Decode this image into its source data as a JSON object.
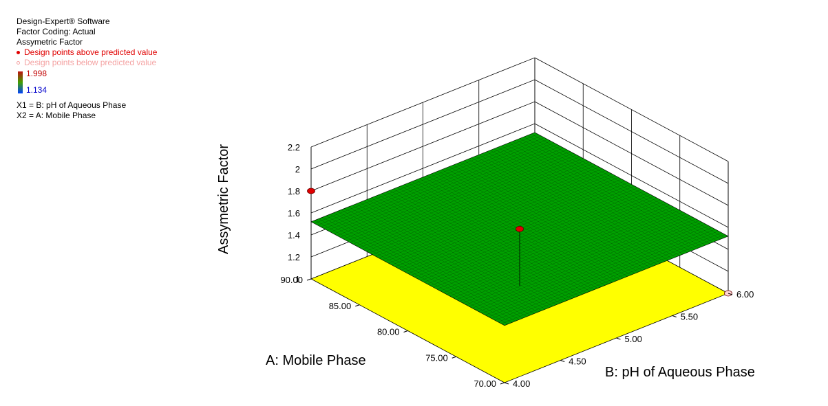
{
  "legend": {
    "software": "Design-Expert® Software",
    "coding": "Factor Coding: Actual",
    "response": "Assymetric Factor",
    "points_above": "Design points above predicted value",
    "points_below": "Design points below predicted value",
    "scale_max": "1.998",
    "scale_min": "1.134",
    "x1": "X1 = B: pH of Aqueous Phase",
    "x2": "X2 = A: Mobile Phase",
    "colors": {
      "above": "#e00000",
      "below": "#f4a3a3",
      "scale_max_text": "#c00000",
      "scale_min_text": "#0000cc"
    }
  },
  "chart_data": {
    "type": "surface",
    "title": "",
    "zlabel": "Assymetric Factor",
    "xlabel": "B: pH of Aqueous Phase",
    "ylabel": "A: Mobile Phase",
    "x_ticks": [
      "4.00",
      "4.50",
      "5.00",
      "5.50",
      "6.00"
    ],
    "y_ticks": [
      "70.00",
      "75.00",
      "80.00",
      "85.00",
      "90.00"
    ],
    "z_ticks": [
      "1",
      "1.2",
      "1.4",
      "1.6",
      "1.8",
      "2",
      "2.2"
    ],
    "xlim": [
      4.0,
      6.0
    ],
    "ylim": [
      70.0,
      90.0
    ],
    "zlim": [
      1.0,
      2.2
    ],
    "surface": {
      "corners": [
        {
          "b": 4.0,
          "a": 70.0,
          "z": 1.52
        },
        {
          "b": 6.0,
          "a": 70.0,
          "z": 1.52
        },
        {
          "b": 4.0,
          "a": 90.0,
          "z": 1.52
        },
        {
          "b": 6.0,
          "a": 90.0,
          "z": 1.52
        }
      ],
      "color": "#00a000",
      "mesh_color": "#003300"
    },
    "floor_color": "#ffff00",
    "design_points": [
      {
        "b": 4.0,
        "a": 90.0,
        "z": 1.8,
        "position": "above"
      },
      {
        "b": 5.0,
        "a": 80.0,
        "z": 1.52,
        "position": "above"
      },
      {
        "b": 6.0,
        "a": 70.0,
        "z": 1.0,
        "position": "below"
      }
    ],
    "grid": true
  }
}
